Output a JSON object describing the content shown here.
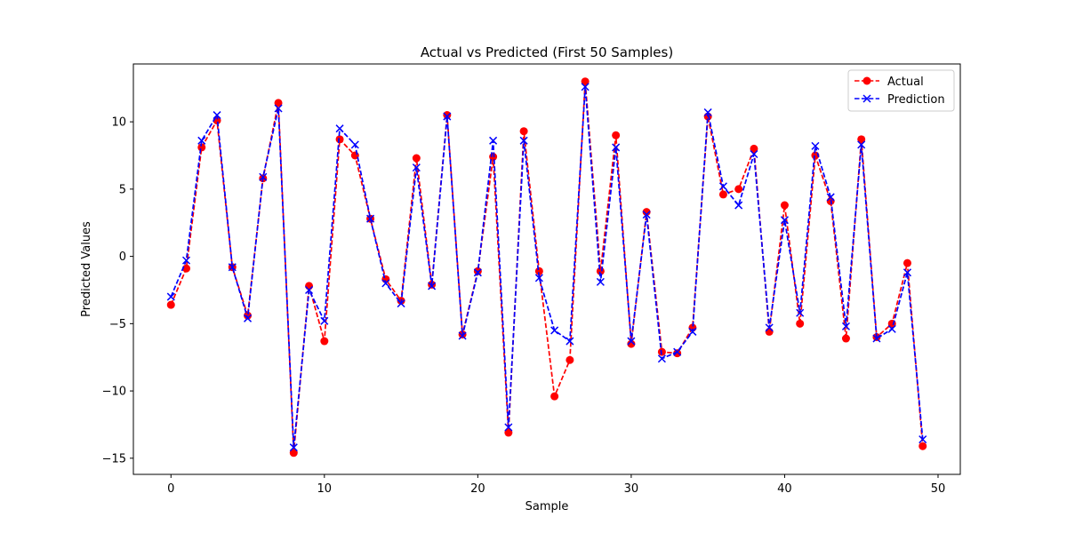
{
  "chart_data": {
    "type": "line",
    "title": "Actual vs Predicted (First 50 Samples)",
    "xlabel": "Sample",
    "ylabel": "Predicted Values",
    "xlim": [
      -2.45,
      51.45
    ],
    "ylim": [
      -16.2,
      14.3
    ],
    "xticks": [
      0,
      10,
      20,
      30,
      40,
      50
    ],
    "yticks": [
      -15,
      -10,
      -5,
      0,
      5,
      10
    ],
    "grid": false,
    "legend_position": "top-right",
    "x": [
      0,
      1,
      2,
      3,
      4,
      5,
      6,
      7,
      8,
      9,
      10,
      11,
      12,
      13,
      14,
      15,
      16,
      17,
      18,
      19,
      20,
      21,
      22,
      23,
      24,
      25,
      26,
      27,
      28,
      29,
      30,
      31,
      32,
      33,
      34,
      35,
      36,
      37,
      38,
      39,
      40,
      41,
      42,
      43,
      44,
      45,
      46,
      47,
      48,
      49
    ],
    "series": [
      {
        "name": "Actual",
        "color": "#ff0000",
        "linestyle": "dashed",
        "marker": "circle",
        "values": [
          -3.6,
          -0.9,
          8.1,
          10.1,
          -0.8,
          -4.4,
          5.8,
          11.4,
          -14.6,
          -2.2,
          -6.3,
          8.7,
          7.5,
          2.8,
          -1.7,
          -3.3,
          7.3,
          -2.1,
          10.5,
          -5.8,
          -1.1,
          7.4,
          -13.1,
          9.3,
          -1.1,
          -10.4,
          -7.7,
          13.0,
          -1.1,
          9.0,
          -6.5,
          3.3,
          -7.1,
          -7.2,
          -5.3,
          10.4,
          4.6,
          5.0,
          8.0,
          -5.6,
          3.8,
          -5.0,
          7.5,
          4.1,
          -6.1,
          8.7,
          -6.0,
          -5.0,
          -0.5,
          -14.1
        ]
      },
      {
        "name": "Prediction",
        "color": "#0000ff",
        "linestyle": "dashed",
        "marker": "x",
        "values": [
          -3.0,
          -0.3,
          8.6,
          10.5,
          -0.8,
          -4.6,
          5.9,
          11.0,
          -14.2,
          -2.5,
          -4.8,
          9.5,
          8.3,
          2.8,
          -2.0,
          -3.5,
          6.6,
          -2.2,
          10.4,
          -5.9,
          -1.2,
          8.6,
          -12.7,
          8.6,
          -1.6,
          -5.5,
          -6.3,
          12.6,
          -1.9,
          8.1,
          -6.3,
          3.1,
          -7.6,
          -7.1,
          -5.6,
          10.7,
          5.2,
          3.8,
          7.6,
          -5.3,
          2.7,
          -4.2,
          8.2,
          4.4,
          -5.2,
          8.3,
          -6.1,
          -5.4,
          -1.2,
          -13.6
        ]
      }
    ]
  }
}
